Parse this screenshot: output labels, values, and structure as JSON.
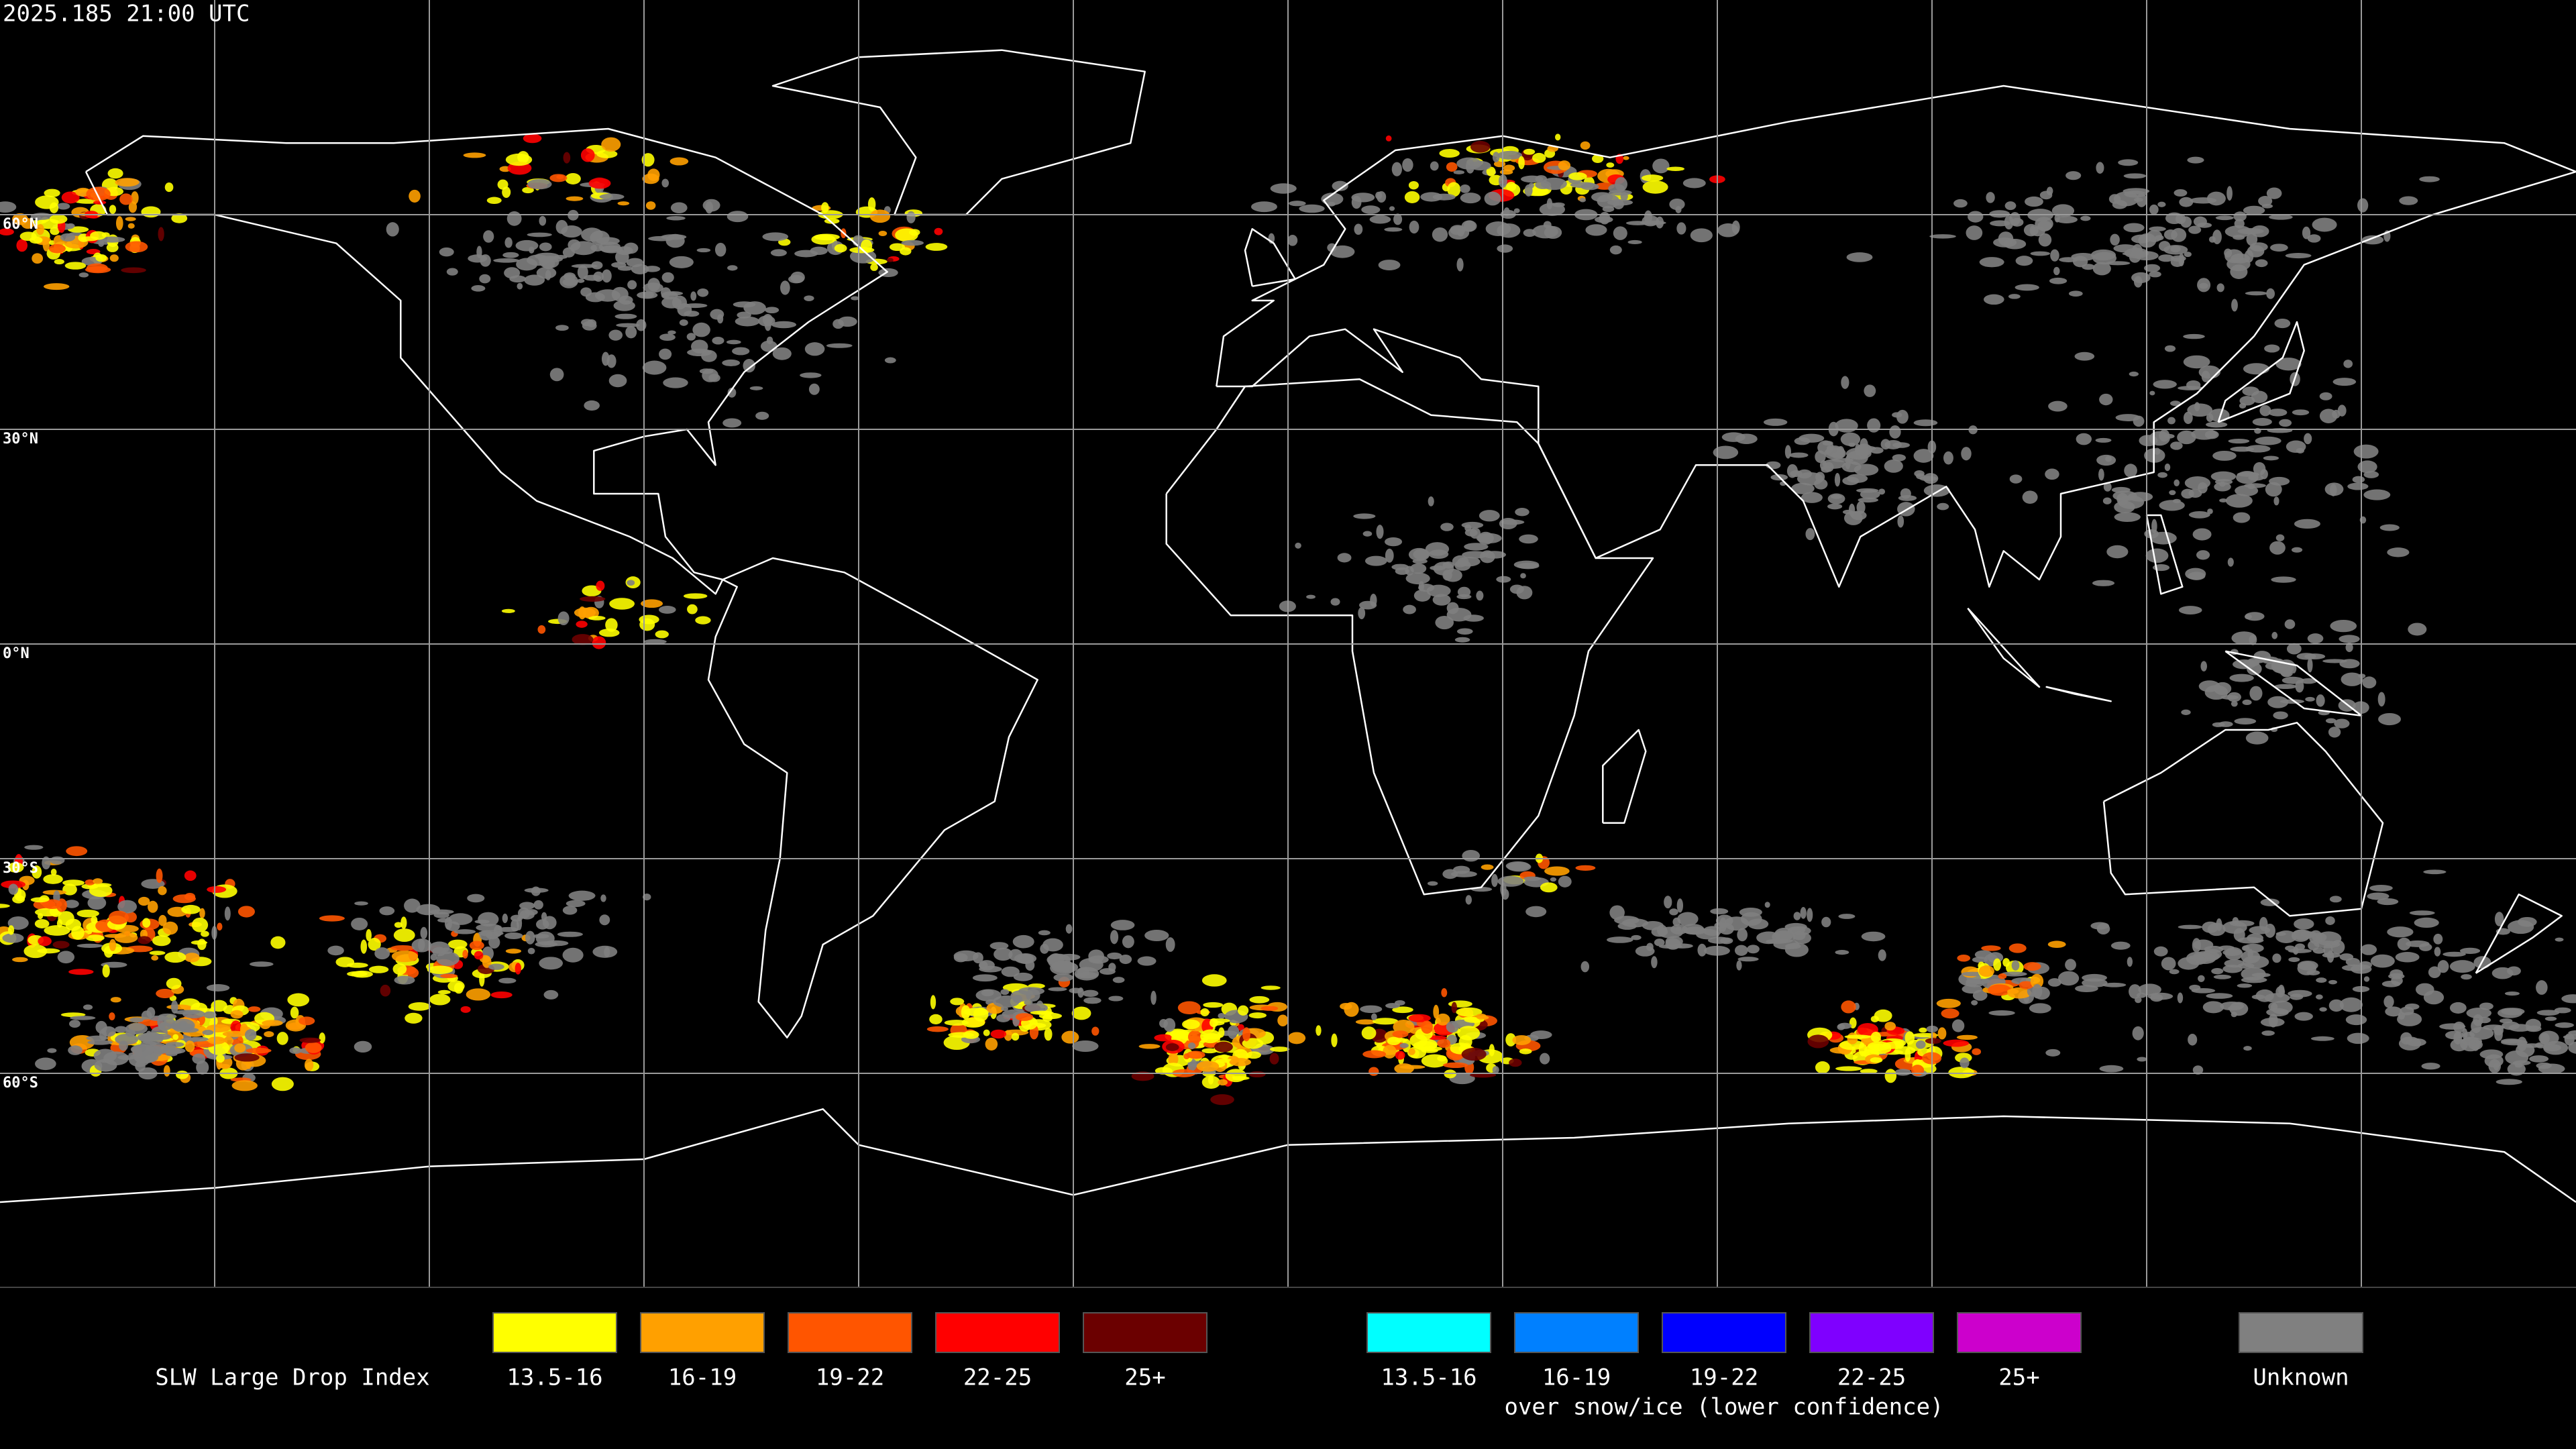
{
  "header": {
    "title": "2025.185 21:00 UTC"
  },
  "latitude_labels": [
    "60°N",
    "30°N",
    "0°N",
    "30°S",
    "60°S"
  ],
  "legend": {
    "title": "SLW Large Drop Index",
    "groups": [
      {
        "items": [
          {
            "label": "13.5-16",
            "color": "#ffff00"
          },
          {
            "label": "16-19",
            "color": "#ffa000"
          },
          {
            "label": "19-22",
            "color": "#ff5500"
          },
          {
            "label": "22-25",
            "color": "#ff0000"
          },
          {
            "label": "25+",
            "color": "#6b0000"
          }
        ]
      },
      {
        "items": [
          {
            "label": "13.5-16",
            "color": "#00ffff"
          },
          {
            "label": "16-19",
            "color": "#0080ff"
          },
          {
            "label": "19-22",
            "color": "#0000ff"
          },
          {
            "label": "22-25",
            "color": "#7f00ff"
          },
          {
            "label": "25+",
            "color": "#cc00cc"
          }
        ],
        "caption": "over snow/ice (lower confidence)"
      },
      {
        "items": [
          {
            "label": "Unknown",
            "color": "#808080"
          }
        ]
      }
    ]
  }
}
